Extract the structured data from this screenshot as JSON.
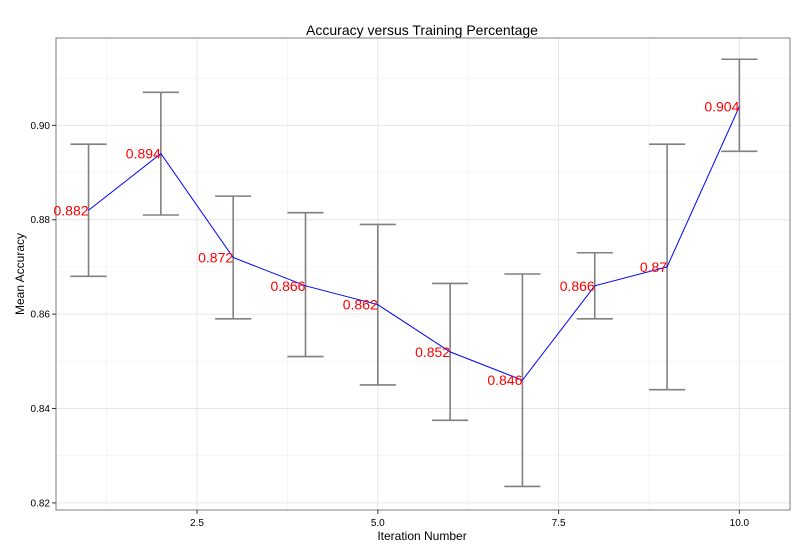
{
  "chart_data": {
    "type": "line",
    "title": "Accuracy versus Training Percentage",
    "xlabel": "Iteration Number",
    "ylabel": "Mean Accuracy",
    "xlim": [
      0.55,
      10.7
    ],
    "ylim": [
      0.8185,
      0.9185
    ],
    "x_ticks": [
      2.5,
      5.0,
      7.5,
      10.0
    ],
    "x_tick_labels": [
      "2.5",
      "5.0",
      "7.5",
      "10.0"
    ],
    "y_ticks": [
      0.82,
      0.84,
      0.86,
      0.88,
      0.9
    ],
    "y_tick_labels": [
      "0.82",
      "0.84",
      "0.86",
      "0.88",
      "0.90"
    ],
    "grid": true,
    "series": [
      {
        "x": [
          1,
          2,
          3,
          4,
          5,
          6,
          7,
          8,
          9,
          10
        ],
        "y": [
          0.882,
          0.894,
          0.872,
          0.866,
          0.862,
          0.852,
          0.846,
          0.866,
          0.87,
          0.904
        ],
        "ymin": [
          0.868,
          0.881,
          0.859,
          0.851,
          0.845,
          0.8375,
          0.8235,
          0.859,
          0.844,
          0.8945
        ],
        "ymax": [
          0.896,
          0.907,
          0.885,
          0.8815,
          0.879,
          0.8665,
          0.8685,
          0.873,
          0.896,
          0.914
        ],
        "labels": [
          "0.882",
          "0.894",
          "0.872",
          "0.866",
          "0.862",
          "0.852",
          "0.846",
          "0.866",
          "0.87",
          "0.904"
        ]
      }
    ],
    "colors": {
      "line": "#0000ff",
      "error_bars": "#808080",
      "labels": "#ff0000"
    }
  }
}
